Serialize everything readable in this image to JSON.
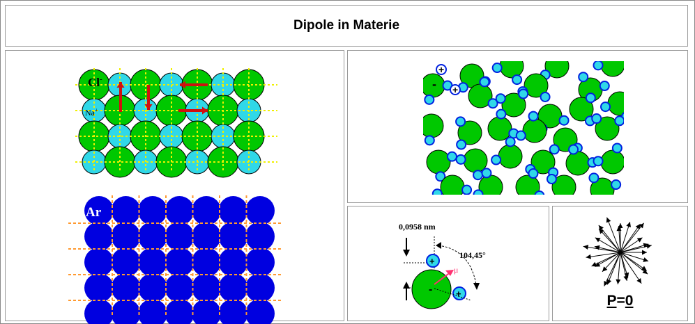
{
  "title": "Dipole in Materie",
  "nacl": {
    "cl_label": "Cl",
    "cl_sup": "-",
    "na_label": "Na",
    "na_sup": "+",
    "colors": {
      "cl": "#00c800",
      "na": "#30d8e8",
      "dipole": "#d01010",
      "grid": "#f0f000"
    }
  },
  "argon": {
    "label": "Ar",
    "colors": {
      "atom": "#0000e0",
      "grid": "#ff9a30"
    }
  },
  "liquid": {
    "neg_sign": "-",
    "pos_sign": "+",
    "colors": {
      "oxygen": "#00c800",
      "hydrogen": "#30d8e8",
      "hydrogen_ring": "#0020e0"
    }
  },
  "water": {
    "bond_length": "0,0958 nm",
    "angle": "104,45°",
    "mu": "μ",
    "minus": "-",
    "plus": "+",
    "colors": {
      "oxygen": "#00c800",
      "hydrogen": "#30d8e8",
      "mu_arrow": "#ff3070"
    }
  },
  "random": {
    "p_symbol": "P",
    "equals": "=",
    "zero": "0",
    "dipole_count": 28
  }
}
